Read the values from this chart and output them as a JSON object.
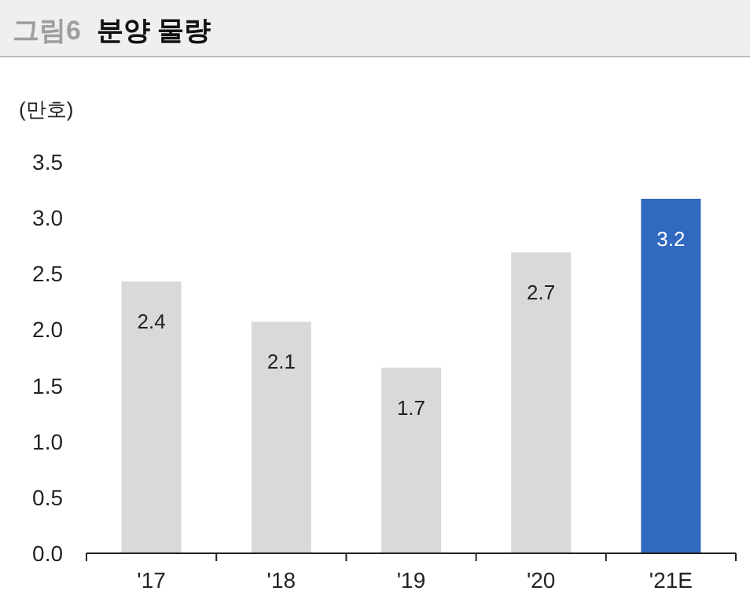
{
  "chart_data": {
    "type": "bar",
    "title": "그림6",
    "subtitle": "분양 물량",
    "ylabel": "(만호)",
    "categories": [
      "'17",
      "'18",
      "'19",
      "'20",
      "'21E"
    ],
    "values": [
      2.43,
      2.07,
      1.66,
      2.69,
      3.17
    ],
    "colors": [
      "#d9d9d9",
      "#d9d9d9",
      "#d9d9d9",
      "#d9d9d9",
      "#3168c0"
    ],
    "value_labels": [
      "2.4",
      "2.1",
      "1.7",
      "2.7",
      "3.2"
    ],
    "ylim": [
      0,
      3.5
    ],
    "yticks": [
      {
        "value": 0,
        "label": "0.0"
      },
      {
        "value": 0.5,
        "label": "0.5"
      },
      {
        "value": 1,
        "label": "1.0"
      },
      {
        "value": 1.5,
        "label": "1.5"
      },
      {
        "value": 2,
        "label": "2.0"
      },
      {
        "value": 2.5,
        "label": "2.5"
      },
      {
        "value": 3,
        "label": "3.0"
      },
      {
        "value": 3.5,
        "label": "3.5"
      }
    ],
    "grid": false
  }
}
